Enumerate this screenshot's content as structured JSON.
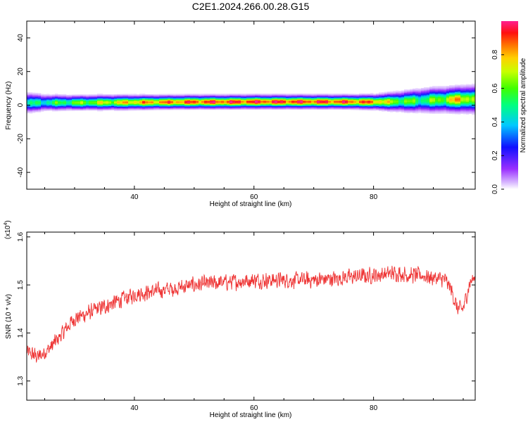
{
  "title": "C2E1.2024.266.00.28.G15",
  "chart_data": [
    {
      "type": "heatmap",
      "name": "spectrogram",
      "xlabel": "Height of straight line (km)",
      "ylabel": "Frequency (Hz)",
      "xlim": [
        22,
        97
      ],
      "ylim": [
        -50,
        50
      ],
      "xticks": [
        40,
        60,
        80
      ],
      "yticks": [
        -40,
        -20,
        0,
        20,
        40
      ],
      "ridge": {
        "x": [
          22,
          25,
          30,
          35,
          40,
          45,
          50,
          55,
          60,
          65,
          70,
          75,
          80,
          82,
          85,
          88,
          90,
          92,
          94,
          96,
          97
        ],
        "center_hz": [
          1.2,
          1.3,
          1.3,
          1.4,
          1.5,
          1.6,
          1.7,
          1.7,
          1.8,
          1.8,
          1.8,
          1.8,
          1.7,
          1.8,
          2.1,
          2.6,
          2.9,
          3.0,
          3.2,
          3.3,
          3.3
        ],
        "halfwidth_hz": [
          4.0,
          3.2,
          3.0,
          3.0,
          2.9,
          2.8,
          2.8,
          2.8,
          2.8,
          2.8,
          2.8,
          2.8,
          3.0,
          3.5,
          4.2,
          4.8,
          5.0,
          5.0,
          5.2,
          5.5,
          5.5
        ],
        "peak_amplitude": [
          0.45,
          0.5,
          0.6,
          0.7,
          0.8,
          0.85,
          0.9,
          0.92,
          0.93,
          0.93,
          0.92,
          0.9,
          0.85,
          0.7,
          0.6,
          0.55,
          0.6,
          0.7,
          0.8,
          0.7,
          0.6
        ]
      },
      "colorbar": {
        "label": "Normalized spectral amplitude",
        "ticks": [
          "0.0",
          "0.2",
          "0.4",
          "0.6",
          "0.8"
        ],
        "range": [
          0,
          1
        ]
      }
    },
    {
      "type": "line",
      "name": "snr",
      "xlabel": "Height of straight line (km)",
      "ylabel": "SNR (10 * v/v)",
      "scale_note": {
        "prefix": "(x10",
        "exp": "4",
        "suffix": ")"
      },
      "xlim": [
        22,
        97
      ],
      "ylim": [
        1.26,
        1.61
      ],
      "xticks": [
        40,
        60,
        80
      ],
      "yticks": [
        "1.3",
        "1.4",
        "1.5",
        "1.6"
      ],
      "color": "#ee3333",
      "trend": {
        "x": [
          22,
          24,
          26,
          28,
          30,
          32,
          34,
          36,
          38,
          40,
          45,
          50,
          55,
          60,
          65,
          70,
          75,
          80,
          84,
          86,
          88,
          90,
          92,
          93,
          94,
          95,
          96,
          97
        ],
        "y": [
          1.36,
          1.35,
          1.37,
          1.4,
          1.43,
          1.44,
          1.45,
          1.46,
          1.47,
          1.48,
          1.49,
          1.5,
          1.505,
          1.51,
          1.51,
          1.51,
          1.515,
          1.52,
          1.525,
          1.52,
          1.52,
          1.515,
          1.51,
          1.49,
          1.45,
          1.45,
          1.5,
          1.52
        ]
      },
      "noise_amplitude": 0.02,
      "samples": 1500
    }
  ]
}
